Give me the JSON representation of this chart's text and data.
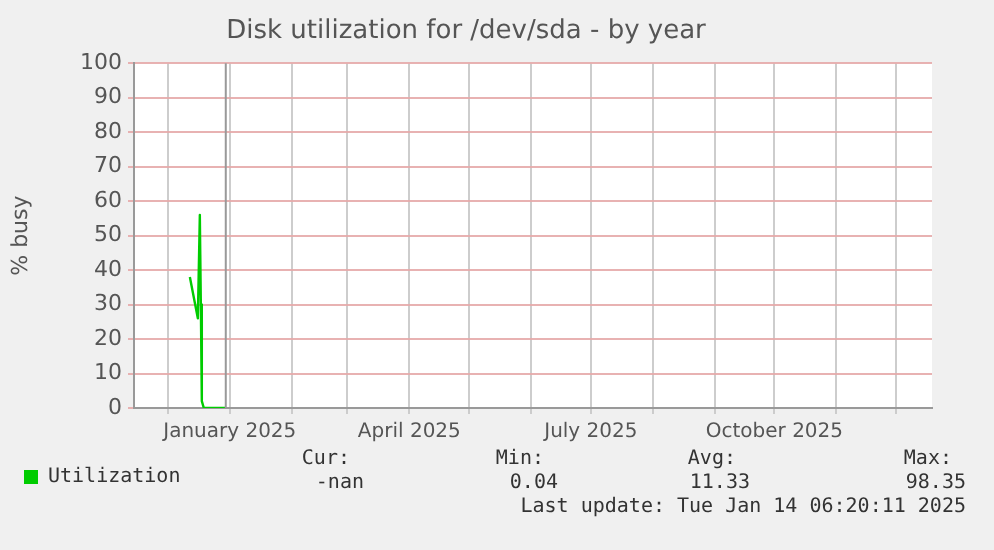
{
  "chart_data": {
    "type": "line",
    "title": "Disk utilization for /dev/sda - by year",
    "ylabel": "% busy",
    "x": [
      "2024-12-12",
      "2024-12-16",
      "2024-12-17",
      "2024-12-17T12:00",
      "2024-12-18",
      "2024-12-19",
      "2024-12-30"
    ],
    "series": [
      {
        "name": "Utilization",
        "color": "#00cc00",
        "values": [
          38,
          26,
          56,
          30,
          2,
          0,
          0
        ]
      }
    ],
    "xlim": [
      "2024-11-14",
      "2025-12-19"
    ],
    "xticks": [
      {
        "value": "2024-12-01",
        "label": null
      },
      {
        "value": "2025-01-01",
        "label": "January 2025"
      },
      {
        "value": "2025-02-01",
        "label": null
      },
      {
        "value": "2025-03-01",
        "label": null
      },
      {
        "value": "2025-04-01",
        "label": "April 2025"
      },
      {
        "value": "2025-05-01",
        "label": null
      },
      {
        "value": "2025-06-01",
        "label": null
      },
      {
        "value": "2025-07-01",
        "label": "July 2025"
      },
      {
        "value": "2025-08-01",
        "label": null
      },
      {
        "value": "2025-09-01",
        "label": null
      },
      {
        "value": "2025-10-01",
        "label": "October 2025"
      },
      {
        "value": "2025-11-01",
        "label": null
      },
      {
        "value": "2025-12-01",
        "label": null
      }
    ],
    "ylim": [
      0,
      100
    ],
    "yticks": [
      0,
      10,
      20,
      30,
      40,
      50,
      60,
      70,
      80,
      90,
      100
    ],
    "grid": true,
    "legend": "bottom left",
    "marker": "none",
    "line_style": "solid",
    "ref_lines": [
      {
        "axis": "x",
        "value": "2024-12-30",
        "color": "#999999"
      }
    ],
    "annotations": [
      "Cur:",
      "Min:",
      "Avg:",
      "Max:",
      "-nan",
      "0.04",
      "11.33",
      "98.35",
      "Last update: Tue Jan 14 06:20:11 2025"
    ]
  }
}
